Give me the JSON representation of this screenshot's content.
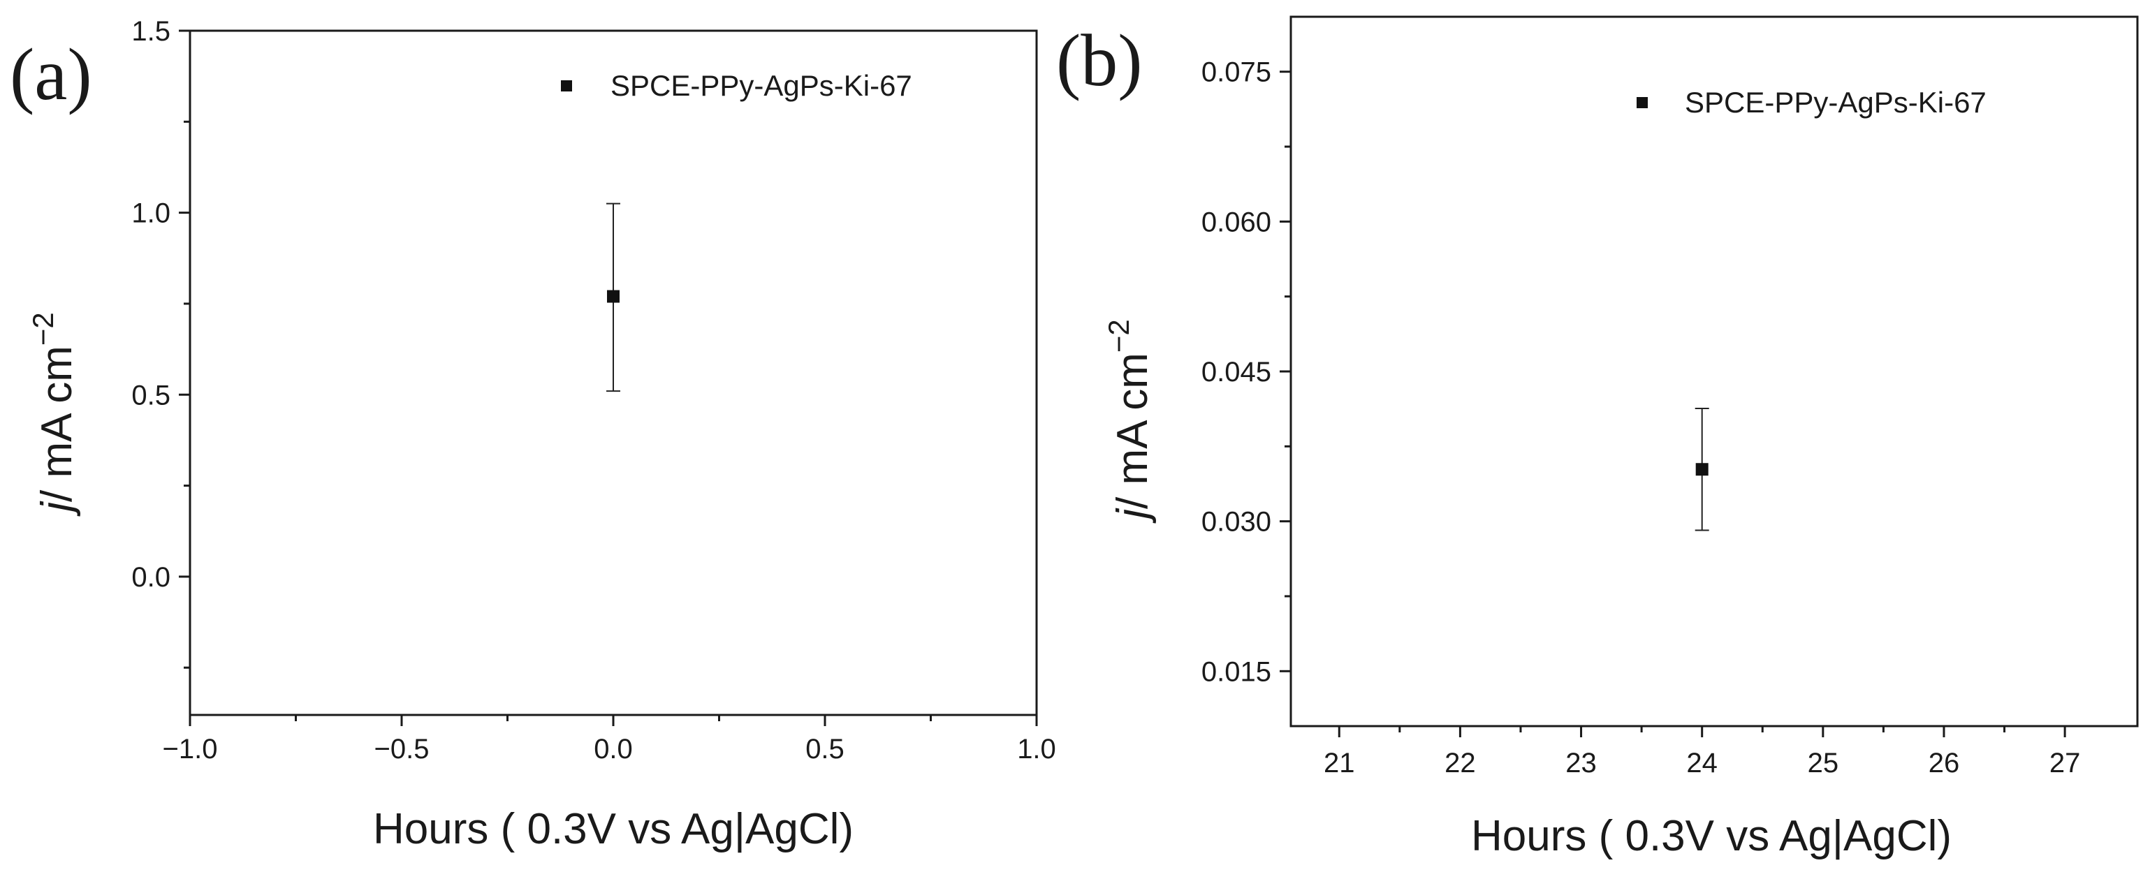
{
  "chart_data": [
    {
      "type": "scatter",
      "panel_label": "(a)",
      "xlabel": "Hours ( 0.3V vs Ag|AgCl)",
      "ylabel_main": "/ mA cm",
      "ylabel_italic": "j",
      "ylabel_sup": "−2",
      "xlim": [
        -1.0,
        1.0
      ],
      "ylim": [
        -0.38,
        1.5
      ],
      "x_ticks": [
        "−1.0",
        "−0.5",
        "0.0",
        "0.5",
        "1.0"
      ],
      "y_ticks": [
        "0.0",
        "0.5",
        "1.0",
        "1.5"
      ],
      "legend": {
        "position": "top-right",
        "label": "SPCE-PPy-AgPs-Ki-67"
      },
      "series": [
        {
          "name": "SPCE-PPy-AgPs-Ki-67",
          "x": [
            0.0
          ],
          "y": [
            0.77
          ],
          "err_low": [
            0.51
          ],
          "err_high": [
            1.025
          ]
        }
      ]
    },
    {
      "type": "scatter",
      "panel_label": "(b)",
      "xlabel": "Hours ( 0.3V vs Ag|AgCl)",
      "ylabel_main": "/ mA cm",
      "ylabel_italic": "j",
      "ylabel_sup": "−2",
      "xlim": [
        20.6,
        27.6
      ],
      "ylim": [
        0.0095,
        0.0805
      ],
      "x_ticks": [
        "21",
        "22",
        "23",
        "24",
        "25",
        "26",
        "27"
      ],
      "y_ticks": [
        "0.015",
        "0.030",
        "0.045",
        "0.060",
        "0.075"
      ],
      "legend": {
        "position": "top-right",
        "label": "SPCE-PPy-AgPs-Ki-67"
      },
      "series": [
        {
          "name": "SPCE-PPy-AgPs-Ki-67",
          "x": [
            24
          ],
          "y": [
            0.0352
          ],
          "err_low": [
            0.0291
          ],
          "err_high": [
            0.0413
          ]
        }
      ]
    }
  ]
}
